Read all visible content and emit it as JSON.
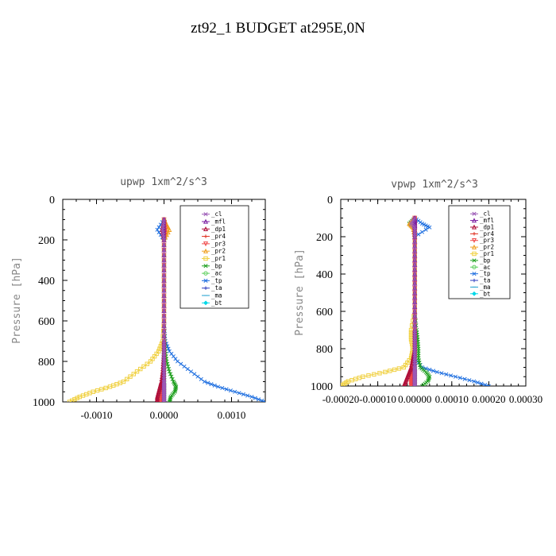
{
  "page_title": "zt92_1  BUDGET at295E,0N",
  "chart_data": [
    {
      "type": "line",
      "title": "upwp   1xm^2/s^3",
      "xlabel": "",
      "ylabel": "Pressure [hPa]",
      "xlim": [
        -0.0015,
        0.0015
      ],
      "ylim": [
        1000,
        0
      ],
      "xticks": [
        -0.001,
        0.0,
        0.001
      ],
      "xtick_labels": [
        "-0.0010",
        "0.0000",
        "0.0010"
      ],
      "yticks": [
        0,
        200,
        400,
        600,
        800,
        1000
      ],
      "ytick_labels": [
        "0",
        "200",
        "400",
        "600",
        "800",
        "1000"
      ],
      "grid": false,
      "legend_position": "top-right",
      "y": [
        100,
        150,
        200,
        300,
        400,
        500,
        600,
        700,
        750,
        800,
        850,
        900,
        925,
        950,
        975,
        1000
      ],
      "series": [
        {
          "name": "_cl",
          "values": [
            0,
            -2e-05,
            0,
            0,
            0,
            0,
            0,
            0,
            0,
            0,
            0,
            0,
            0,
            0,
            0,
            0
          ]
        },
        {
          "name": "_mfl",
          "values": [
            0,
            0,
            0,
            0,
            0,
            0,
            0,
            0,
            0,
            0,
            0,
            0,
            0,
            0,
            0,
            0
          ]
        },
        {
          "name": "_dp1",
          "values": [
            0,
            -3e-05,
            0,
            0,
            0,
            0,
            0,
            0,
            0,
            -1e-05,
            -2e-05,
            -4e-05,
            -6e-05,
            -8e-05,
            -0.0001,
            -0.0001
          ]
        },
        {
          "name": "_pr4",
          "values": [
            0,
            0,
            0,
            0,
            0,
            0,
            0,
            0,
            0,
            0,
            0,
            0,
            0,
            0,
            0,
            0
          ]
        },
        {
          "name": "_pr3",
          "values": [
            0,
            2e-05,
            0,
            0,
            0,
            0,
            0,
            0,
            0,
            0,
            0,
            -1e-05,
            -2e-05,
            -3e-05,
            -4e-05,
            -5e-05
          ]
        },
        {
          "name": "_pr2",
          "values": [
            0,
            8e-05,
            0,
            0,
            0,
            0,
            0,
            0,
            0,
            0,
            0,
            0,
            0,
            0,
            0,
            0
          ]
        },
        {
          "name": "_pr1",
          "values": [
            0,
            4e-05,
            0,
            0,
            0,
            0,
            0,
            -2e-05,
            -8e-05,
            -0.0002,
            -0.0004,
            -0.0006,
            -0.0008,
            -0.00105,
            -0.00125,
            -0.0014
          ]
        },
        {
          "name": "_bp",
          "values": [
            0,
            2e-05,
            0,
            0,
            0,
            0,
            0,
            1e-05,
            2e-05,
            4e-05,
            8e-05,
            0.00014,
            0.00018,
            0.00016,
            0.0001,
            8e-05
          ]
        },
        {
          "name": "_ac",
          "values": [
            0,
            0,
            0,
            0,
            0,
            0,
            0,
            0,
            0,
            0,
            0,
            0,
            0,
            0,
            0,
            0
          ]
        },
        {
          "name": "_tp",
          "values": [
            0,
            -0.0001,
            0,
            0,
            0,
            0,
            0,
            2e-05,
            8e-05,
            0.0002,
            0.0004,
            0.0006,
            0.0008,
            0.00105,
            0.0013,
            0.0015
          ]
        },
        {
          "name": "_ta",
          "values": [
            0,
            0,
            0,
            0,
            0,
            0,
            0,
            0,
            0,
            0,
            0,
            0,
            0,
            0,
            0,
            0
          ]
        },
        {
          "name": "_ma",
          "values": [
            0,
            0,
            0,
            0,
            0,
            0,
            0,
            0,
            0,
            0,
            0,
            0,
            0,
            0,
            0,
            0
          ]
        },
        {
          "name": "_bt",
          "values": [
            0,
            0,
            0,
            0,
            0,
            0,
            0,
            0,
            0,
            0,
            0,
            0,
            0,
            0,
            0,
            0
          ]
        }
      ]
    },
    {
      "type": "line",
      "title": "vpwp   1xm^2/s^3",
      "xlabel": "",
      "ylabel": "Pressure [hPa]",
      "xlim": [
        -0.0002,
        0.0003
      ],
      "ylim": [
        1000,
        0
      ],
      "xticks": [
        -0.0002,
        -0.0001,
        0.0,
        0.0001,
        0.0002,
        0.0003
      ],
      "xtick_labels": [
        "-0.00020",
        "-0.00010",
        "0.00000",
        "0.00010",
        "0.00020",
        "0.00030"
      ],
      "yticks": [
        0,
        200,
        400,
        600,
        800,
        1000
      ],
      "ytick_labels": [
        "0",
        "200",
        "400",
        "600",
        "800",
        "1000"
      ],
      "grid": false,
      "legend_position": "top-right",
      "y": [
        100,
        130,
        150,
        200,
        300,
        400,
        500,
        600,
        700,
        750,
        800,
        850,
        900,
        925,
        950,
        975,
        1000
      ],
      "series": [
        {
          "name": "_cl",
          "values": [
            0,
            -1e-05,
            0,
            0,
            0,
            0,
            0,
            0,
            0,
            0,
            0,
            0,
            0,
            0,
            0,
            0,
            0
          ]
        },
        {
          "name": "_mfl",
          "values": [
            0,
            0,
            0,
            0,
            0,
            0,
            0,
            0,
            0,
            0,
            0,
            0,
            0,
            0,
            0,
            0,
            0
          ]
        },
        {
          "name": "_dp1",
          "values": [
            0,
            0,
            0,
            0,
            0,
            0,
            0,
            0,
            0,
            0,
            0,
            -5e-06,
            -1e-05,
            -1.5e-05,
            -2e-05,
            -2.5e-05,
            -3e-05
          ]
        },
        {
          "name": "_pr4",
          "values": [
            0,
            0,
            0,
            0,
            0,
            0,
            0,
            0,
            0,
            0,
            0,
            0,
            0,
            0,
            0,
            0,
            0
          ]
        },
        {
          "name": "_pr3",
          "values": [
            0,
            0,
            0,
            0,
            0,
            0,
            0,
            0,
            0,
            0,
            0,
            0,
            -5e-06,
            -1e-05,
            -1e-05,
            -1e-05,
            -1e-05
          ]
        },
        {
          "name": "_pr2",
          "values": [
            0,
            -1.5e-05,
            -5e-06,
            0,
            0,
            0,
            0,
            0,
            0,
            0,
            0,
            0,
            0,
            0,
            0,
            0,
            0
          ]
        },
        {
          "name": "_pr1",
          "values": [
            0,
            0,
            0,
            0,
            0,
            0,
            0,
            0,
            -1e-05,
            -1e-05,
            -5e-06,
            -1e-05,
            -3e-05,
            -8e-05,
            -0.00014,
            -0.00018,
            -0.0002
          ]
        },
        {
          "name": "_bp",
          "values": [
            0,
            -1.5e-05,
            0,
            0,
            0,
            0,
            0,
            0,
            5e-06,
            8e-06,
            1e-05,
            1e-05,
            1.5e-05,
            3e-05,
            4e-05,
            3.5e-05,
            2e-05
          ]
        },
        {
          "name": "_ac",
          "values": [
            0,
            0,
            0,
            0,
            0,
            0,
            0,
            0,
            0,
            0,
            0,
            0,
            0,
            0,
            0,
            0,
            0
          ]
        },
        {
          "name": "_tp",
          "values": [
            0,
            2e-05,
            4e-05,
            0,
            0,
            0,
            0,
            0,
            0,
            0,
            0,
            0,
            2e-05,
            6e-05,
            0.00011,
            0.00016,
            0.0002
          ]
        },
        {
          "name": "_ta",
          "values": [
            0,
            0,
            0,
            0,
            0,
            0,
            0,
            0,
            0,
            0,
            0,
            0,
            0,
            0,
            0,
            0,
            0
          ]
        },
        {
          "name": "_ma",
          "values": [
            0,
            0,
            0,
            0,
            0,
            0,
            0,
            0,
            0,
            0,
            0,
            0,
            0,
            0,
            0,
            0,
            0
          ]
        },
        {
          "name": "_bt",
          "values": [
            0,
            0,
            0,
            0,
            0,
            0,
            0,
            0,
            0,
            0,
            0,
            0,
            0,
            0,
            0,
            0,
            0
          ]
        }
      ]
    }
  ],
  "series_colors": {
    "_cl": "#9b59b6",
    "_mfl": "#7b1fa2",
    "_dp1": "#b0103a",
    "_pr4": "#e03020",
    "_pr3": "#f04848",
    "_pr2": "#f0a020",
    "_pr1": "#f0d040",
    "_bp": "#20a020",
    "_ac": "#60d060",
    "_tp": "#2070e0",
    "_ta": "#3040c0",
    "_ma": "#20a0d0",
    "_bt": "#00d8e8"
  },
  "series_markers": {
    "_cl": "x",
    "_mfl": "tri",
    "_dp1": "tri",
    "_pr4": "plus",
    "_pr3": "tri-down",
    "_pr2": "tri",
    "_pr1": "square",
    "_bp": "x",
    "_ac": "circle",
    "_tp": "x",
    "_ta": "plus",
    "_ma": "dash",
    "_bt": "diamond"
  }
}
